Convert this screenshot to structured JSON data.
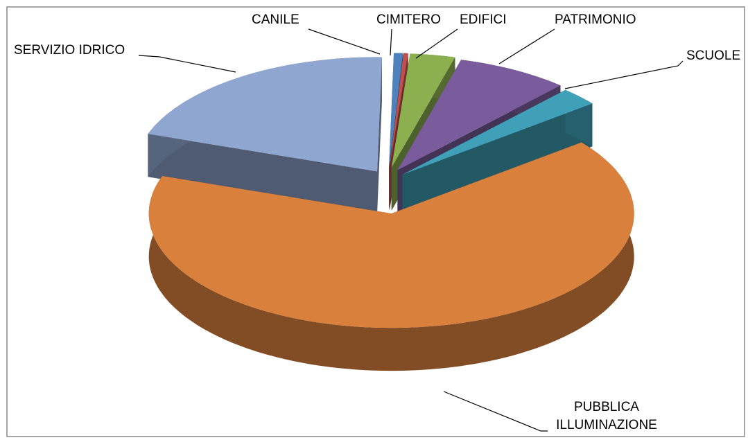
{
  "chart_data": {
    "type": "pie",
    "categories": [
      "CANILE",
      "CIMITERO",
      "EDIFICI",
      "PATRIMONIO",
      "SCUOLE",
      "PUBBLICA ILLUMINAZIONE",
      "SERVIZIO IDRICO"
    ],
    "values": [
      0.6,
      0.3,
      3,
      7.5,
      2.6,
      66,
      20
    ],
    "colors": [
      "#4f81bd",
      "#c0504d",
      "#8cb050",
      "#7a5c9c",
      "#3fa0b8",
      "#d9803c",
      "#8fa6d0"
    ]
  }
}
